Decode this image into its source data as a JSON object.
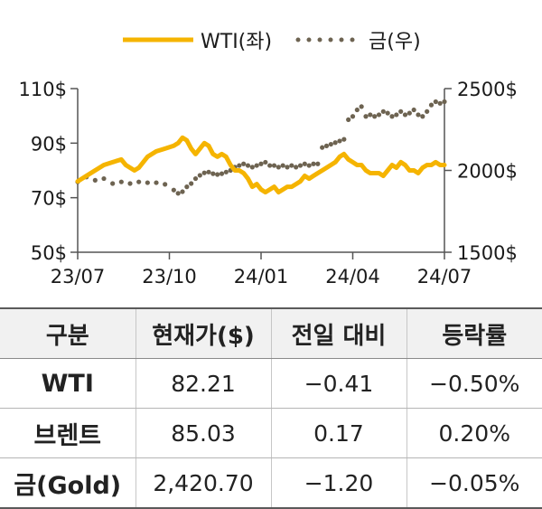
{
  "chart_data": {
    "type": "line",
    "legend": {
      "position": "top",
      "items": [
        "WTI(좌)",
        "금(우)"
      ]
    },
    "x_ticks": [
      "23/07",
      "23/10",
      "24/01",
      "24/04",
      "24/07"
    ],
    "y_left": {
      "ticks": [
        "50$",
        "70$",
        "90$",
        "110$"
      ],
      "range": [
        50,
        110
      ]
    },
    "y_right": {
      "ticks": [
        "1500$",
        "2000$",
        "2500$"
      ],
      "range": [
        1500,
        2500
      ]
    },
    "series": [
      {
        "name": "WTI(좌)",
        "axis": "left",
        "color": "#f5b400",
        "style": "solid",
        "values": [
          [
            0,
            76
          ],
          [
            2,
            78
          ],
          [
            4,
            80
          ],
          [
            6,
            82
          ],
          [
            8,
            83
          ],
          [
            10,
            84
          ],
          [
            11,
            82
          ],
          [
            13,
            80
          ],
          [
            14,
            81
          ],
          [
            16,
            85
          ],
          [
            18,
            87
          ],
          [
            20,
            88
          ],
          [
            22,
            89
          ],
          [
            23,
            90
          ],
          [
            24,
            92
          ],
          [
            25,
            91
          ],
          [
            26,
            88
          ],
          [
            27,
            86
          ],
          [
            28,
            88
          ],
          [
            29,
            90
          ],
          [
            30,
            89
          ],
          [
            31,
            86
          ],
          [
            32,
            85
          ],
          [
            33,
            86
          ],
          [
            34,
            85
          ],
          [
            35,
            82
          ],
          [
            36,
            80
          ],
          [
            37,
            80
          ],
          [
            38,
            79
          ],
          [
            39,
            77
          ],
          [
            40,
            74
          ],
          [
            41,
            75
          ],
          [
            42,
            73
          ],
          [
            43,
            72
          ],
          [
            44,
            73
          ],
          [
            45,
            74
          ],
          [
            46,
            72
          ],
          [
            47,
            73
          ],
          [
            48,
            74
          ],
          [
            49,
            74
          ],
          [
            50,
            75
          ],
          [
            51,
            76
          ],
          [
            52,
            78
          ],
          [
            53,
            77
          ],
          [
            54,
            78
          ],
          [
            55,
            79
          ],
          [
            56,
            80
          ],
          [
            57,
            81
          ],
          [
            58,
            82
          ],
          [
            59,
            83
          ],
          [
            60,
            85
          ],
          [
            61,
            86
          ],
          [
            62,
            84
          ],
          [
            63,
            83
          ],
          [
            64,
            82
          ],
          [
            65,
            82
          ],
          [
            66,
            80
          ],
          [
            67,
            79
          ],
          [
            68,
            79
          ],
          [
            69,
            79
          ],
          [
            70,
            78
          ],
          [
            71,
            80
          ],
          [
            72,
            82
          ],
          [
            73,
            81
          ],
          [
            74,
            83
          ],
          [
            75,
            82
          ],
          [
            76,
            80
          ],
          [
            77,
            80
          ],
          [
            78,
            79
          ],
          [
            79,
            81
          ],
          [
            80,
            82
          ],
          [
            81,
            82
          ],
          [
            82,
            83
          ],
          [
            83,
            82
          ],
          [
            84,
            82
          ]
        ],
        "label_positions_note": ""
      },
      {
        "name": "금(우)",
        "axis": "right",
        "color": "#6d6351",
        "style": "dotted",
        "values": [
          [
            0,
            1930
          ],
          [
            2,
            1960
          ],
          [
            4,
            1940
          ],
          [
            6,
            1950
          ],
          [
            8,
            1920
          ],
          [
            10,
            1930
          ],
          [
            12,
            1920
          ],
          [
            14,
            1930
          ],
          [
            16,
            1925
          ],
          [
            18,
            1925
          ],
          [
            20,
            1915
          ],
          [
            22,
            1880
          ],
          [
            23,
            1860
          ],
          [
            24,
            1870
          ],
          [
            25,
            1900
          ],
          [
            26,
            1920
          ],
          [
            27,
            1950
          ],
          [
            28,
            1970
          ],
          [
            29,
            1985
          ],
          [
            30,
            1990
          ],
          [
            31,
            1980
          ],
          [
            32,
            1975
          ],
          [
            33,
            1980
          ],
          [
            34,
            1990
          ],
          [
            35,
            2000
          ],
          [
            36,
            2020
          ],
          [
            37,
            2030
          ],
          [
            38,
            2040
          ],
          [
            39,
            2030
          ],
          [
            40,
            2020
          ],
          [
            41,
            2030
          ],
          [
            42,
            2040
          ],
          [
            43,
            2050
          ],
          [
            44,
            2030
          ],
          [
            45,
            2030
          ],
          [
            46,
            2020
          ],
          [
            47,
            2030
          ],
          [
            48,
            2020
          ],
          [
            49,
            2030
          ],
          [
            50,
            2020
          ],
          [
            51,
            2030
          ],
          [
            52,
            2040
          ],
          [
            53,
            2030
          ],
          [
            54,
            2040
          ],
          [
            55,
            2040
          ],
          [
            56,
            2140
          ],
          [
            57,
            2150
          ],
          [
            58,
            2160
          ],
          [
            59,
            2170
          ],
          [
            60,
            2180
          ],
          [
            61,
            2190
          ],
          [
            62,
            2310
          ],
          [
            63,
            2330
          ],
          [
            64,
            2370
          ],
          [
            65,
            2390
          ],
          [
            66,
            2330
          ],
          [
            67,
            2340
          ],
          [
            68,
            2330
          ],
          [
            69,
            2340
          ],
          [
            70,
            2360
          ],
          [
            71,
            2350
          ],
          [
            72,
            2330
          ],
          [
            73,
            2340
          ],
          [
            74,
            2360
          ],
          [
            75,
            2340
          ],
          [
            76,
            2350
          ],
          [
            77,
            2370
          ],
          [
            78,
            2340
          ],
          [
            79,
            2330
          ],
          [
            80,
            2360
          ],
          [
            81,
            2400
          ],
          [
            82,
            2420
          ],
          [
            83,
            2410
          ],
          [
            84,
            2420
          ]
        ]
      }
    ]
  },
  "table": {
    "headers": [
      "구분",
      "현재가($)",
      "전일 대비",
      "등락률"
    ],
    "rows": [
      [
        "WTI",
        "82.21",
        "−0.41",
        "−0.50%"
      ],
      [
        "브렌트",
        "85.03",
        "0.17",
        "0.20%"
      ],
      [
        "금(Gold)",
        "2,420.70",
        "−1.20",
        "−0.05%"
      ]
    ]
  }
}
